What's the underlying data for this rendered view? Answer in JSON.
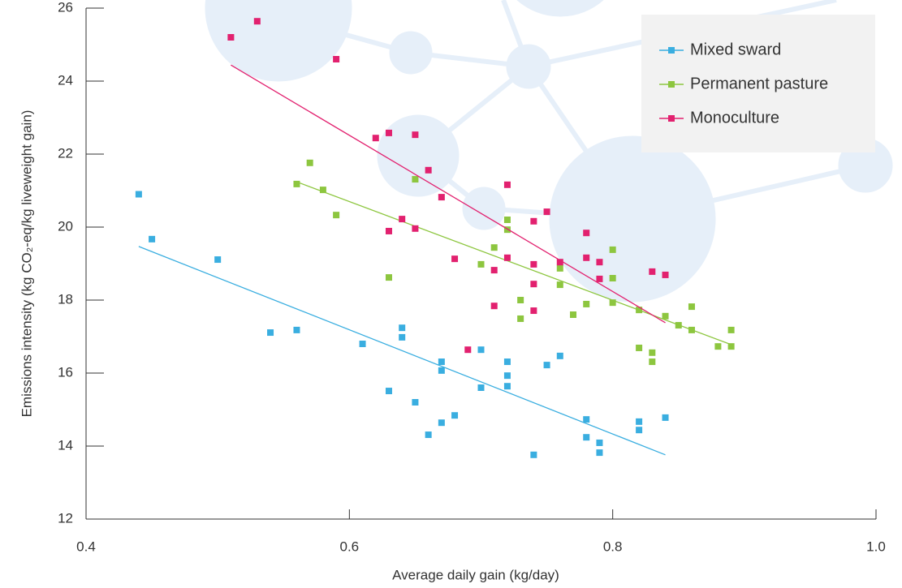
{
  "chart_data": {
    "type": "scatter",
    "xlabel": "Average daily gain (kg/day)",
    "ylabel": "Emissions intensity (kg CO₂-eq/kg liveweight gain)",
    "xlim": [
      0.4,
      1.0
    ],
    "xticks": [
      0.4,
      0.6,
      0.8,
      {
        "value": 1,
        "label": "1.0"
      }
    ],
    "ylim": [
      12,
      26
    ],
    "yticks": [
      12,
      14,
      16,
      18,
      20,
      22,
      24,
      26
    ],
    "legend": "upper right",
    "series": [
      {
        "name": "Mixed sward",
        "color": "#3aaee0",
        "x": [
          0.44,
          0.45,
          0.5,
          0.54,
          0.56,
          0.61,
          0.63,
          0.64,
          0.64,
          0.65,
          0.66,
          0.67,
          0.67,
          0.67,
          0.68,
          0.7,
          0.7,
          0.72,
          0.72,
          0.72,
          0.74,
          0.75,
          0.76,
          0.78,
          0.78,
          0.79,
          0.79,
          0.82,
          0.82,
          0.84
        ],
        "values": [
          20.9,
          19.67,
          19.11,
          17.11,
          17.18,
          16.8,
          15.51,
          17.24,
          16.98,
          15.2,
          14.31,
          16.31,
          16.07,
          14.64,
          14.84,
          16.64,
          15.6,
          16.31,
          15.93,
          15.64,
          13.76,
          16.22,
          16.47,
          14.73,
          14.24,
          14.09,
          13.82,
          14.67,
          14.44,
          14.78
        ],
        "trend": {
          "x": [
            0.44,
            0.84
          ],
          "values": [
            19.47,
            13.76
          ]
        }
      },
      {
        "name": "Permanent pasture",
        "color": "#8dc63f",
        "x": [
          0.56,
          0.57,
          0.58,
          0.59,
          0.63,
          0.65,
          0.72,
          0.72,
          0.71,
          0.7,
          0.73,
          0.73,
          0.76,
          0.76,
          0.77,
          0.78,
          0.8,
          0.8,
          0.8,
          0.82,
          0.82,
          0.83,
          0.83,
          0.84,
          0.85,
          0.86,
          0.86,
          0.88,
          0.89,
          0.89
        ],
        "values": [
          21.18,
          21.76,
          21.02,
          20.33,
          18.62,
          21.31,
          20.2,
          19.93,
          19.44,
          18.98,
          18.0,
          17.49,
          18.87,
          18.42,
          17.6,
          17.89,
          19.38,
          18.6,
          17.93,
          17.73,
          16.69,
          16.56,
          16.31,
          17.56,
          17.31,
          17.82,
          17.18,
          16.73,
          17.18,
          16.73
        ],
        "trend": {
          "x": [
            0.56,
            0.89
          ],
          "values": [
            21.24,
            16.78
          ]
        }
      },
      {
        "name": "Monoculture",
        "color": "#e2216f",
        "x": [
          0.51,
          0.53,
          0.59,
          0.62,
          0.63,
          0.65,
          0.66,
          0.67,
          0.64,
          0.63,
          0.65,
          0.68,
          0.71,
          0.71,
          0.69,
          0.72,
          0.72,
          0.74,
          0.74,
          0.74,
          0.74,
          0.75,
          0.76,
          0.78,
          0.78,
          0.79,
          0.79,
          0.83,
          0.84
        ],
        "values": [
          25.2,
          25.64,
          24.6,
          22.44,
          22.58,
          22.53,
          21.56,
          20.82,
          20.22,
          19.89,
          19.96,
          19.13,
          18.82,
          17.84,
          16.64,
          21.16,
          19.16,
          20.16,
          18.98,
          18.44,
          17.71,
          20.42,
          19.04,
          19.84,
          19.16,
          19.04,
          18.58,
          18.78,
          18.69
        ],
        "trend": {
          "x": [
            0.51,
            0.84
          ],
          "values": [
            24.44,
            17.38
          ]
        }
      }
    ]
  }
}
